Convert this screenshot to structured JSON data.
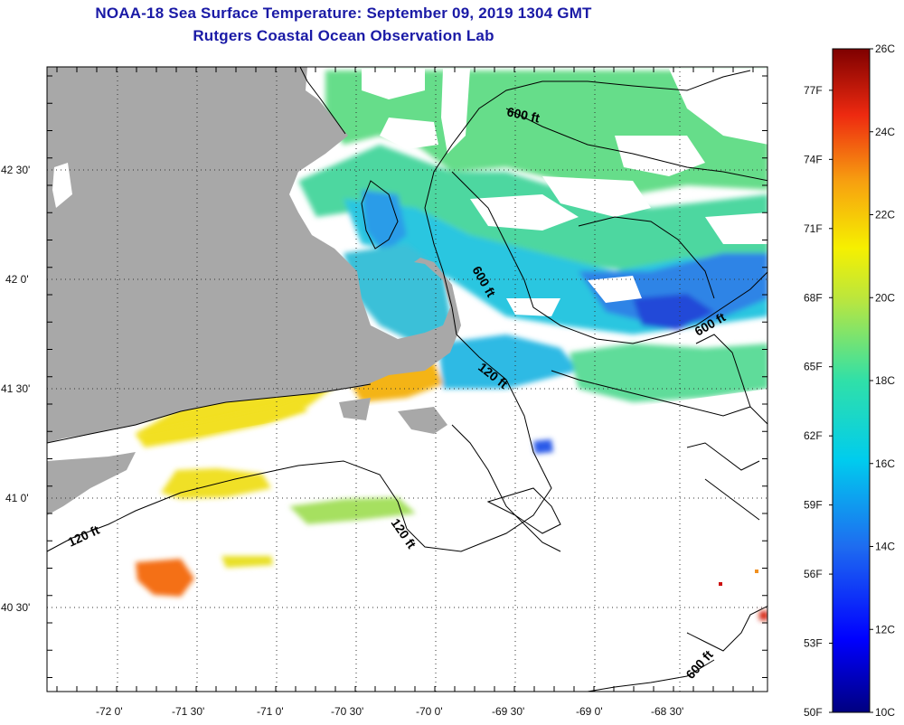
{
  "title": "NOAA-18 Sea Surface Temperature:  September 09, 2019 1304 GMT",
  "subtitle": "Rutgers Coastal Ocean Observation Lab",
  "lon_labels": [
    "-72 0'",
    "-71 30'",
    "-71 0'",
    "-70 30'",
    "-70 0'",
    "-69 30'",
    "-69 0'",
    "-68 30'"
  ],
  "lat_labels": [
    "42 30'",
    "42 0'",
    "41 30'",
    "41 0'",
    "40 30'"
  ],
  "depth_labels": [
    "600 ft",
    "600 ft",
    "600 ft",
    "120 ft",
    "120 ft",
    "120 ft",
    "600 ft"
  ],
  "colorbar": {
    "celsius": [
      "26C",
      "24C",
      "22C",
      "20C",
      "18C",
      "16C",
      "14C",
      "12C",
      "10C"
    ],
    "fahrenheit": [
      "77F",
      "74F",
      "71F",
      "68F",
      "65F",
      "62F",
      "59F",
      "56F",
      "53F",
      "50F"
    ],
    "min_c": 10,
    "max_c": 26
  },
  "colors": {
    "land": "#a8a8a8",
    "title": "#1a1aa6",
    "cloud_mask": "#ffffff"
  }
}
